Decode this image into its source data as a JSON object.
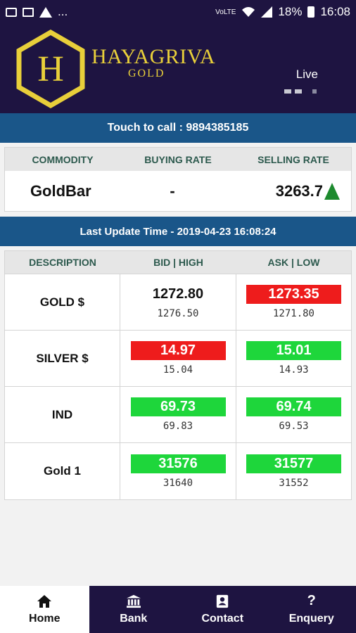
{
  "status_bar": {
    "left_icons": [
      "image-icon",
      "mail-icon",
      "warning-icon"
    ],
    "ellipsis": "...",
    "network": "VoLTE",
    "battery": "18%",
    "time": "16:08"
  },
  "header": {
    "logo_letter": "H",
    "brand_name": "HAYAGRIVA",
    "brand_sub": "GOLD",
    "live_label": "Live",
    "brand_color": "#e8cf3a",
    "bg_color": "#1e1441"
  },
  "call_bar": {
    "text": "Touch to call : 9894385185"
  },
  "commodity_table": {
    "headers": [
      "COMMODITY",
      "BUYING RATE",
      "SELLING RATE"
    ],
    "row": {
      "commodity": "GoldBar",
      "buying_rate": "-",
      "selling_rate": "3263.7",
      "trend": "up"
    }
  },
  "update_bar": {
    "text": "Last Update Time - 2019-04-23 16:08:24"
  },
  "rates_table": {
    "headers": [
      "DESCRIPTION",
      "BID | HIGH",
      "ASK | LOW"
    ],
    "rows": [
      {
        "description": "GOLD $",
        "bid": "1272.80",
        "high": "1276.50",
        "ask": "1273.35",
        "low": "1271.80",
        "bid_state": "plain",
        "ask_state": "red"
      },
      {
        "description": "SILVER $",
        "bid": "14.97",
        "high": "15.04",
        "ask": "15.01",
        "low": "14.93",
        "bid_state": "red",
        "ask_state": "green"
      },
      {
        "description": "IND",
        "bid": "69.73",
        "high": "69.83",
        "ask": "69.74",
        "low": "69.53",
        "bid_state": "green",
        "ask_state": "green"
      },
      {
        "description": "Gold 1",
        "bid": "31576",
        "high": "31640",
        "ask": "31577",
        "low": "31552",
        "bid_state": "green",
        "ask_state": "green"
      }
    ]
  },
  "bottom_nav": {
    "items": [
      {
        "label": "Home",
        "icon": "home-icon",
        "active": true
      },
      {
        "label": "Bank",
        "icon": "bank-icon",
        "active": false
      },
      {
        "label": "Contact",
        "icon": "contact-icon",
        "active": false
      },
      {
        "label": "Enquery",
        "icon": "question-icon",
        "active": false
      }
    ]
  },
  "colors": {
    "up": "#1ed63b",
    "down": "#ee1c1c",
    "bar": "#1a5689"
  }
}
